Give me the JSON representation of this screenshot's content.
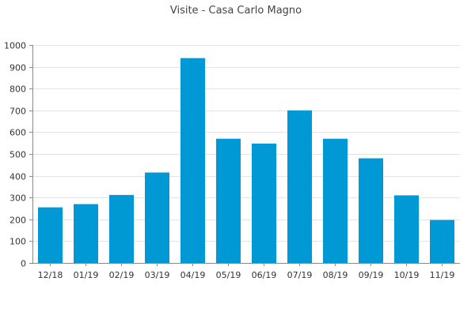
{
  "chart_data": {
    "type": "bar",
    "title": "Visite - Casa Carlo Magno",
    "xlabel": "",
    "ylabel": "",
    "categories": [
      "12/18",
      "01/19",
      "02/19",
      "03/19",
      "04/19",
      "05/19",
      "06/19",
      "07/19",
      "08/19",
      "09/19",
      "10/19",
      "11/19"
    ],
    "values": [
      255,
      270,
      312,
      415,
      940,
      570,
      548,
      700,
      570,
      480,
      310,
      197
    ],
    "ylim": [
      0,
      1000
    ],
    "yticks": [
      0,
      100,
      200,
      300,
      400,
      500,
      600,
      700,
      800,
      900,
      1000
    ],
    "grid": true,
    "legend": "none",
    "bar_color": "#0099d6",
    "grid_color": "#e3e3e3",
    "axis_color": "#888888"
  }
}
